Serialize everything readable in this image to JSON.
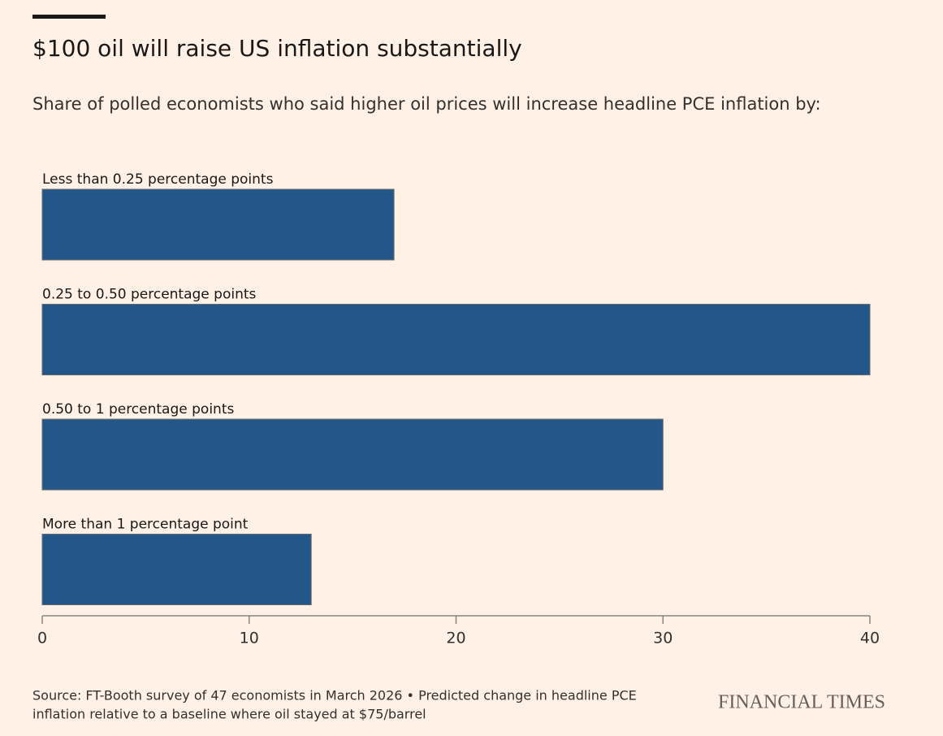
{
  "chart_data": {
    "type": "hbar",
    "title": "$100 oil will raise US inflation substantially",
    "subtitle": "Share of polled economists who said higher oil prices will increase headline PCE inflation by:",
    "categories": [
      "Less than 0.25 percentage points",
      "0.25 to 0.50 percentage points",
      "0.50 to 1 percentage points",
      "More than 1 percentage point"
    ],
    "values": [
      17,
      40,
      30,
      13
    ],
    "color": "#235689",
    "xlim": [
      0,
      40
    ],
    "xticks": [
      0,
      10,
      20,
      30,
      40
    ],
    "source": [
      "Source: FT-Booth survey of 47 economists in March 2026 • Predicted change in headline PCE",
      "inflation relative to a baseline where oil stayed at $75/barrel"
    ],
    "brand": "FINANCIAL TIMES"
  }
}
